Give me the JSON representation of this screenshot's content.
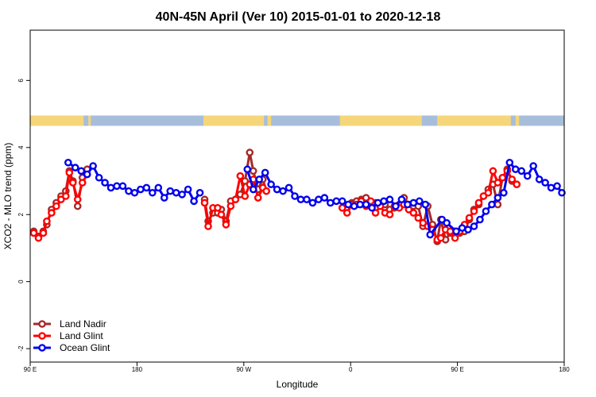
{
  "chart_data": {
    "type": "line",
    "title": "40N-45N April (Ver 10)   2015-01-01 to 2020-12-18",
    "xlabel": "Longitude",
    "ylabel": "XCO2 - MLO trend (ppm)",
    "xlim": [
      0,
      450
    ],
    "ylim": [
      -2.4,
      7.5
    ],
    "xticks": [
      {
        "value": 0,
        "label": "90 E"
      },
      {
        "value": 90,
        "label": "180"
      },
      {
        "value": 180,
        "label": "90 W"
      },
      {
        "value": 270,
        "label": "0"
      },
      {
        "value": 360,
        "label": "90 E"
      },
      {
        "value": 450,
        "label": "180"
      }
    ],
    "yticks": [
      {
        "value": -2,
        "label": "-2"
      },
      {
        "value": 0,
        "label": "0"
      },
      {
        "value": 2,
        "label": "2"
      },
      {
        "value": 4,
        "label": "4"
      },
      {
        "value": 6,
        "label": "6"
      }
    ],
    "land_mask": {
      "y": 4.8,
      "land_color": "#f5d67a",
      "ocean_color": "#a7bedb",
      "land_ranges": [
        [
          0,
          45
        ],
        [
          49,
          51
        ],
        [
          146,
          197
        ],
        [
          200,
          203
        ],
        [
          261,
          330
        ],
        [
          343,
          405
        ],
        [
          409,
          412
        ]
      ]
    },
    "legend_position": "bottom-left",
    "series": [
      {
        "name": "Land Nadir",
        "color": "#a52a2a",
        "x": [
          3,
          7,
          11,
          14,
          18,
          22,
          26,
          30,
          33,
          36,
          40,
          44,
          48,
          147,
          150,
          154,
          158,
          161,
          165,
          169,
          173,
          177,
          181,
          185,
          188,
          192,
          196,
          199,
          263,
          267,
          271,
          275,
          279,
          283,
          287,
          291,
          295,
          299,
          303,
          307,
          311,
          315,
          319,
          323,
          327,
          331,
          335,
          339,
          343,
          346,
          350,
          354,
          358,
          362,
          366,
          370,
          374,
          378,
          382,
          386,
          390,
          394,
          398,
          402,
          406,
          410
        ],
        "y": [
          1.5,
          1.35,
          1.5,
          1.7,
          2.15,
          2.35,
          2.55,
          2.7,
          3.3,
          3.0,
          2.25,
          3.1,
          3.35,
          2.45,
          1.8,
          2.05,
          2.05,
          2.15,
          1.8,
          2.4,
          2.45,
          2.6,
          3.0,
          3.85,
          3.3,
          2.75,
          3.05,
          2.7,
          2.2,
          2.2,
          2.35,
          2.4,
          2.45,
          2.5,
          2.35,
          2.35,
          2.25,
          2.3,
          2.15,
          2.2,
          2.3,
          2.5,
          2.3,
          2.25,
          2.25,
          1.65,
          2.25,
          1.7,
          1.2,
          1.85,
          1.25,
          1.45,
          1.5,
          1.45,
          1.5,
          1.85,
          2.15,
          2.3,
          2.55,
          2.75,
          2.9,
          2.3,
          3.1,
          3.35,
          3.0,
          2.9
        ]
      },
      {
        "name": "Land Glint",
        "color": "#ff0000",
        "x": [
          3,
          7,
          11,
          14,
          18,
          22,
          26,
          30,
          33,
          36,
          40,
          44,
          48,
          147,
          150,
          154,
          158,
          161,
          165,
          169,
          173,
          177,
          181,
          185,
          188,
          192,
          196,
          199,
          263,
          267,
          271,
          275,
          279,
          283,
          287,
          291,
          295,
          299,
          303,
          307,
          311,
          315,
          319,
          323,
          327,
          331,
          335,
          339,
          343,
          346,
          350,
          354,
          358,
          362,
          366,
          370,
          374,
          378,
          382,
          386,
          390,
          394,
          398,
          402,
          406,
          410
        ],
        "y": [
          1.45,
          1.3,
          1.45,
          1.8,
          2.05,
          2.25,
          2.45,
          2.55,
          3.25,
          2.95,
          2.45,
          2.95,
          3.2,
          2.35,
          1.65,
          2.2,
          2.2,
          2.0,
          1.7,
          2.25,
          2.45,
          3.15,
          2.55,
          2.9,
          3.05,
          2.5,
          2.8,
          2.7,
          2.2,
          2.05,
          2.3,
          2.3,
          2.4,
          2.25,
          2.4,
          2.05,
          2.25,
          2.05,
          2.0,
          2.25,
          2.2,
          2.3,
          2.15,
          2.05,
          1.9,
          1.75,
          1.65,
          1.55,
          1.25,
          1.3,
          1.55,
          1.5,
          1.3,
          1.5,
          1.7,
          1.9,
          2.1,
          2.35,
          2.55,
          2.65,
          3.3,
          2.95,
          3.1,
          3.3,
          3.05,
          2.9
        ]
      },
      {
        "name": "Ocean Glint",
        "color": "#0000ee",
        "x": [
          32,
          38,
          43,
          48,
          53,
          58,
          63,
          68,
          73,
          78,
          83,
          88,
          93,
          98,
          103,
          108,
          113,
          118,
          123,
          128,
          133,
          138,
          143,
          183,
          188,
          193,
          198,
          203,
          208,
          213,
          218,
          223,
          228,
          233,
          238,
          243,
          248,
          253,
          258,
          263,
          268,
          273,
          278,
          283,
          288,
          293,
          298,
          303,
          308,
          313,
          318,
          323,
          328,
          333,
          337,
          347,
          351,
          359,
          364,
          369,
          374,
          379,
          384,
          389,
          394,
          399,
          404,
          409,
          414,
          419,
          424,
          429,
          434,
          439,
          444,
          448
        ],
        "y": [
          3.55,
          3.4,
          3.3,
          3.2,
          3.45,
          3.1,
          2.95,
          2.8,
          2.85,
          2.85,
          2.7,
          2.65,
          2.75,
          2.8,
          2.65,
          2.8,
          2.5,
          2.7,
          2.65,
          2.6,
          2.75,
          2.4,
          2.65,
          3.35,
          2.75,
          3.05,
          3.25,
          2.9,
          2.75,
          2.7,
          2.8,
          2.55,
          2.45,
          2.45,
          2.35,
          2.45,
          2.5,
          2.35,
          2.4,
          2.4,
          2.3,
          2.25,
          2.3,
          2.3,
          2.2,
          2.35,
          2.4,
          2.45,
          2.25,
          2.45,
          2.3,
          2.35,
          2.4,
          2.3,
          1.4,
          1.85,
          1.75,
          1.5,
          1.6,
          1.55,
          1.65,
          1.85,
          2.1,
          2.3,
          2.5,
          2.65,
          3.55,
          3.35,
          3.3,
          3.15,
          3.45,
          3.05,
          2.95,
          2.8,
          2.85,
          2.65
        ]
      }
    ]
  }
}
